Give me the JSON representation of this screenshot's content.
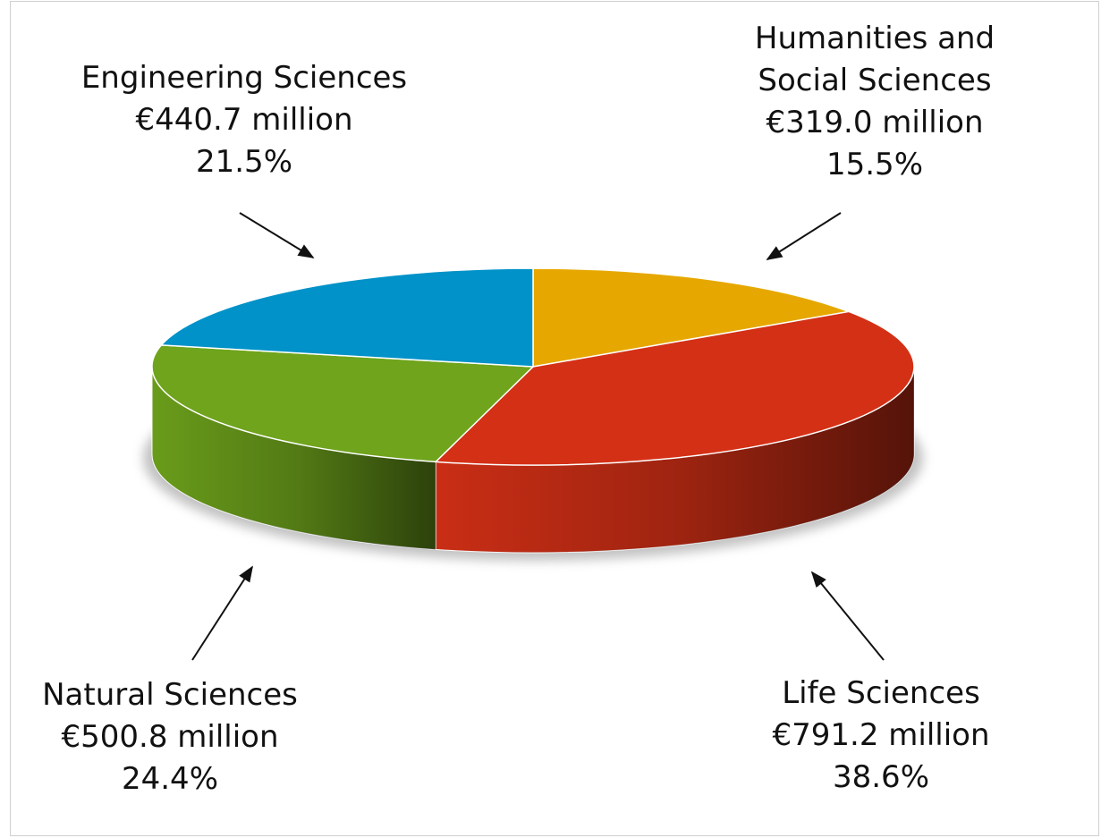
{
  "chart_data": {
    "type": "pie",
    "categories": [
      "Humanities and Social Sciences",
      "Life Sciences",
      "Natural Sciences",
      "Engineering Sciences"
    ],
    "values": [
      319.0,
      791.2,
      500.8,
      440.7
    ],
    "value_labels": [
      "€319.0 million",
      "€791.2 million",
      "€500.8 million",
      "€440.7 million"
    ],
    "shares": [
      15.5,
      38.6,
      24.4,
      21.5
    ],
    "share_labels": [
      "15.5%",
      "38.6%",
      "24.4%",
      "21.5%"
    ],
    "colors": [
      "#e6a800",
      "#d43016",
      "#6fa41c",
      "#0092c8"
    ],
    "three_d": true
  }
}
